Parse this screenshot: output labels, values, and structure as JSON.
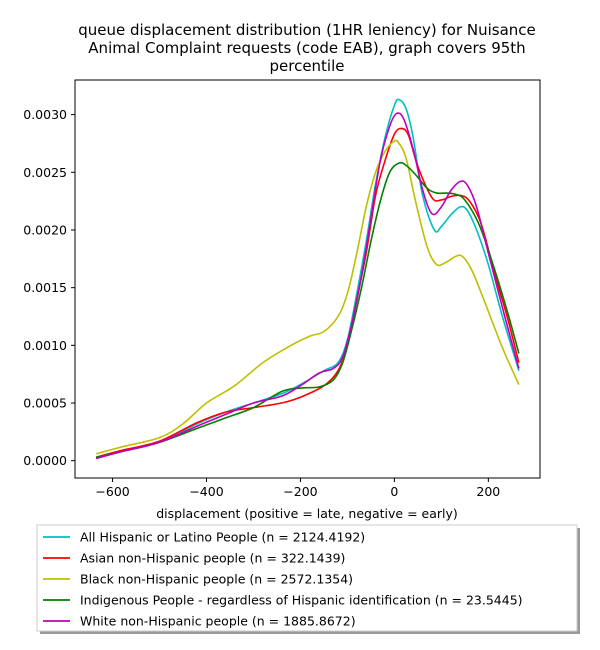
{
  "chart_data": {
    "type": "line",
    "title_lines": [
      "queue displacement distribution (1HR leniency) for Nuisance",
      "Animal Complaint  requests (code EAB), graph covers 95th",
      "percentile"
    ],
    "xlabel": "displacement (positive = late, negative = early)",
    "ylabel": "",
    "xlim": [
      -680,
      310
    ],
    "ylim": [
      -0.00015,
      0.0033
    ],
    "x_ticks": [
      -600,
      -400,
      -200,
      0,
      200
    ],
    "y_ticks": [
      0.0,
      0.0005,
      0.001,
      0.0015,
      0.002,
      0.0025,
      0.003
    ],
    "x_tick_labels": [
      "−600",
      "−400",
      "−200",
      "0",
      "200"
    ],
    "y_tick_labels": [
      "0.0000",
      "0.0005",
      "0.0010",
      "0.0015",
      "0.0020",
      "0.0025",
      "0.0030"
    ],
    "grid": false,
    "legend_position": "below plot",
    "series": [
      {
        "name": "All Hispanic or Latino People (n = 2124.4192)",
        "color": "#00bfbf",
        "points": [
          [
            -635,
            2e-05
          ],
          [
            -580,
            8e-05
          ],
          [
            -500,
            0.00016
          ],
          [
            -420,
            0.00032
          ],
          [
            -360,
            0.00042
          ],
          [
            -300,
            0.0005
          ],
          [
            -240,
            0.00058
          ],
          [
            -200,
            0.00066
          ],
          [
            -150,
            0.00078
          ],
          [
            -120,
            0.00085
          ],
          [
            -100,
            0.00105
          ],
          [
            -80,
            0.00145
          ],
          [
            -60,
            0.0019
          ],
          [
            -40,
            0.0024
          ],
          [
            -20,
            0.0028
          ],
          [
            0,
            0.00308
          ],
          [
            10,
            0.00313
          ],
          [
            25,
            0.00305
          ],
          [
            40,
            0.0028
          ],
          [
            60,
            0.0023
          ],
          [
            85,
            0.002
          ],
          [
            100,
            0.00203
          ],
          [
            120,
            0.00213
          ],
          [
            140,
            0.0022
          ],
          [
            155,
            0.00217
          ],
          [
            175,
            0.002
          ],
          [
            200,
            0.0017
          ],
          [
            230,
            0.00125
          ],
          [
            265,
            0.00078
          ]
        ]
      },
      {
        "name": "Asian non-Hispanic people (n = 322.1439)",
        "color": "#ff0000",
        "points": [
          [
            -635,
            3e-05
          ],
          [
            -580,
            9e-05
          ],
          [
            -500,
            0.00017
          ],
          [
            -420,
            0.00033
          ],
          [
            -360,
            0.00042
          ],
          [
            -300,
            0.00046
          ],
          [
            -240,
            0.0005
          ],
          [
            -200,
            0.00055
          ],
          [
            -150,
            0.00065
          ],
          [
            -120,
            0.00078
          ],
          [
            -100,
            0.001
          ],
          [
            -80,
            0.0014
          ],
          [
            -60,
            0.0018
          ],
          [
            -40,
            0.0023
          ],
          [
            -20,
            0.0026
          ],
          [
            0,
            0.00283
          ],
          [
            15,
            0.00288
          ],
          [
            30,
            0.00282
          ],
          [
            50,
            0.00255
          ],
          [
            80,
            0.00228
          ],
          [
            100,
            0.00226
          ],
          [
            120,
            0.00229
          ],
          [
            140,
            0.0023
          ],
          [
            160,
            0.00225
          ],
          [
            185,
            0.00205
          ],
          [
            215,
            0.0016
          ],
          [
            240,
            0.00125
          ],
          [
            265,
            0.00085
          ]
        ]
      },
      {
        "name": "Black non-Hispanic people (n = 2572.1354)",
        "color": "#bfbf00",
        "points": [
          [
            -635,
            6e-05
          ],
          [
            -580,
            0.00012
          ],
          [
            -500,
            0.0002
          ],
          [
            -450,
            0.00032
          ],
          [
            -400,
            0.0005
          ],
          [
            -340,
            0.00065
          ],
          [
            -280,
            0.00085
          ],
          [
            -220,
            0.001
          ],
          [
            -180,
            0.00108
          ],
          [
            -150,
            0.00112
          ],
          [
            -120,
            0.00125
          ],
          [
            -100,
            0.00145
          ],
          [
            -80,
            0.0018
          ],
          [
            -60,
            0.0022
          ],
          [
            -40,
            0.0025
          ],
          [
            -20,
            0.00268
          ],
          [
            0,
            0.00277
          ],
          [
            10,
            0.00275
          ],
          [
            25,
            0.00262
          ],
          [
            45,
            0.00225
          ],
          [
            70,
            0.00185
          ],
          [
            90,
            0.0017
          ],
          [
            110,
            0.00172
          ],
          [
            130,
            0.00177
          ],
          [
            145,
            0.00177
          ],
          [
            165,
            0.00165
          ],
          [
            190,
            0.0014
          ],
          [
            230,
            0.00098
          ],
          [
            265,
            0.00066
          ]
        ]
      },
      {
        "name": "Indigenous People - regardless of Hispanic identification (n = 23.5445)",
        "color": "#008000",
        "points": [
          [
            -635,
            3e-05
          ],
          [
            -580,
            8e-05
          ],
          [
            -500,
            0.00016
          ],
          [
            -420,
            0.00028
          ],
          [
            -360,
            0.00037
          ],
          [
            -300,
            0.00046
          ],
          [
            -240,
            0.0006
          ],
          [
            -200,
            0.00063
          ],
          [
            -160,
            0.00064
          ],
          [
            -130,
            0.0007
          ],
          [
            -110,
            0.00085
          ],
          [
            -90,
            0.00115
          ],
          [
            -70,
            0.0015
          ],
          [
            -50,
            0.0019
          ],
          [
            -30,
            0.00225
          ],
          [
            -10,
            0.0025
          ],
          [
            10,
            0.00258
          ],
          [
            25,
            0.00256
          ],
          [
            45,
            0.00248
          ],
          [
            70,
            0.00236
          ],
          [
            90,
            0.00232
          ],
          [
            110,
            0.00232
          ],
          [
            130,
            0.00231
          ],
          [
            150,
            0.00226
          ],
          [
            180,
            0.00205
          ],
          [
            210,
            0.0017
          ],
          [
            240,
            0.0013
          ],
          [
            265,
            0.00093
          ]
        ]
      },
      {
        "name": "White non-Hispanic people (n = 1885.8672)",
        "color": "#bf00bf",
        "points": [
          [
            -635,
            2e-05
          ],
          [
            -580,
            8e-05
          ],
          [
            -500,
            0.00016
          ],
          [
            -420,
            0.0003
          ],
          [
            -360,
            0.0004
          ],
          [
            -300,
            0.0005
          ],
          [
            -240,
            0.00056
          ],
          [
            -200,
            0.00065
          ],
          [
            -160,
            0.00076
          ],
          [
            -130,
            0.0008
          ],
          [
            -110,
            0.0009
          ],
          [
            -90,
            0.0012
          ],
          [
            -70,
            0.0016
          ],
          [
            -50,
            0.0021
          ],
          [
            -30,
            0.0026
          ],
          [
            -10,
            0.0029
          ],
          [
            5,
            0.00301
          ],
          [
            20,
            0.00296
          ],
          [
            40,
            0.0027
          ],
          [
            60,
            0.00235
          ],
          [
            80,
            0.00214
          ],
          [
            100,
            0.0022
          ],
          [
            120,
            0.00234
          ],
          [
            140,
            0.00242
          ],
          [
            155,
            0.00239
          ],
          [
            175,
            0.0022
          ],
          [
            200,
            0.0018
          ],
          [
            235,
            0.00125
          ],
          [
            265,
            0.0008
          ]
        ]
      }
    ]
  }
}
